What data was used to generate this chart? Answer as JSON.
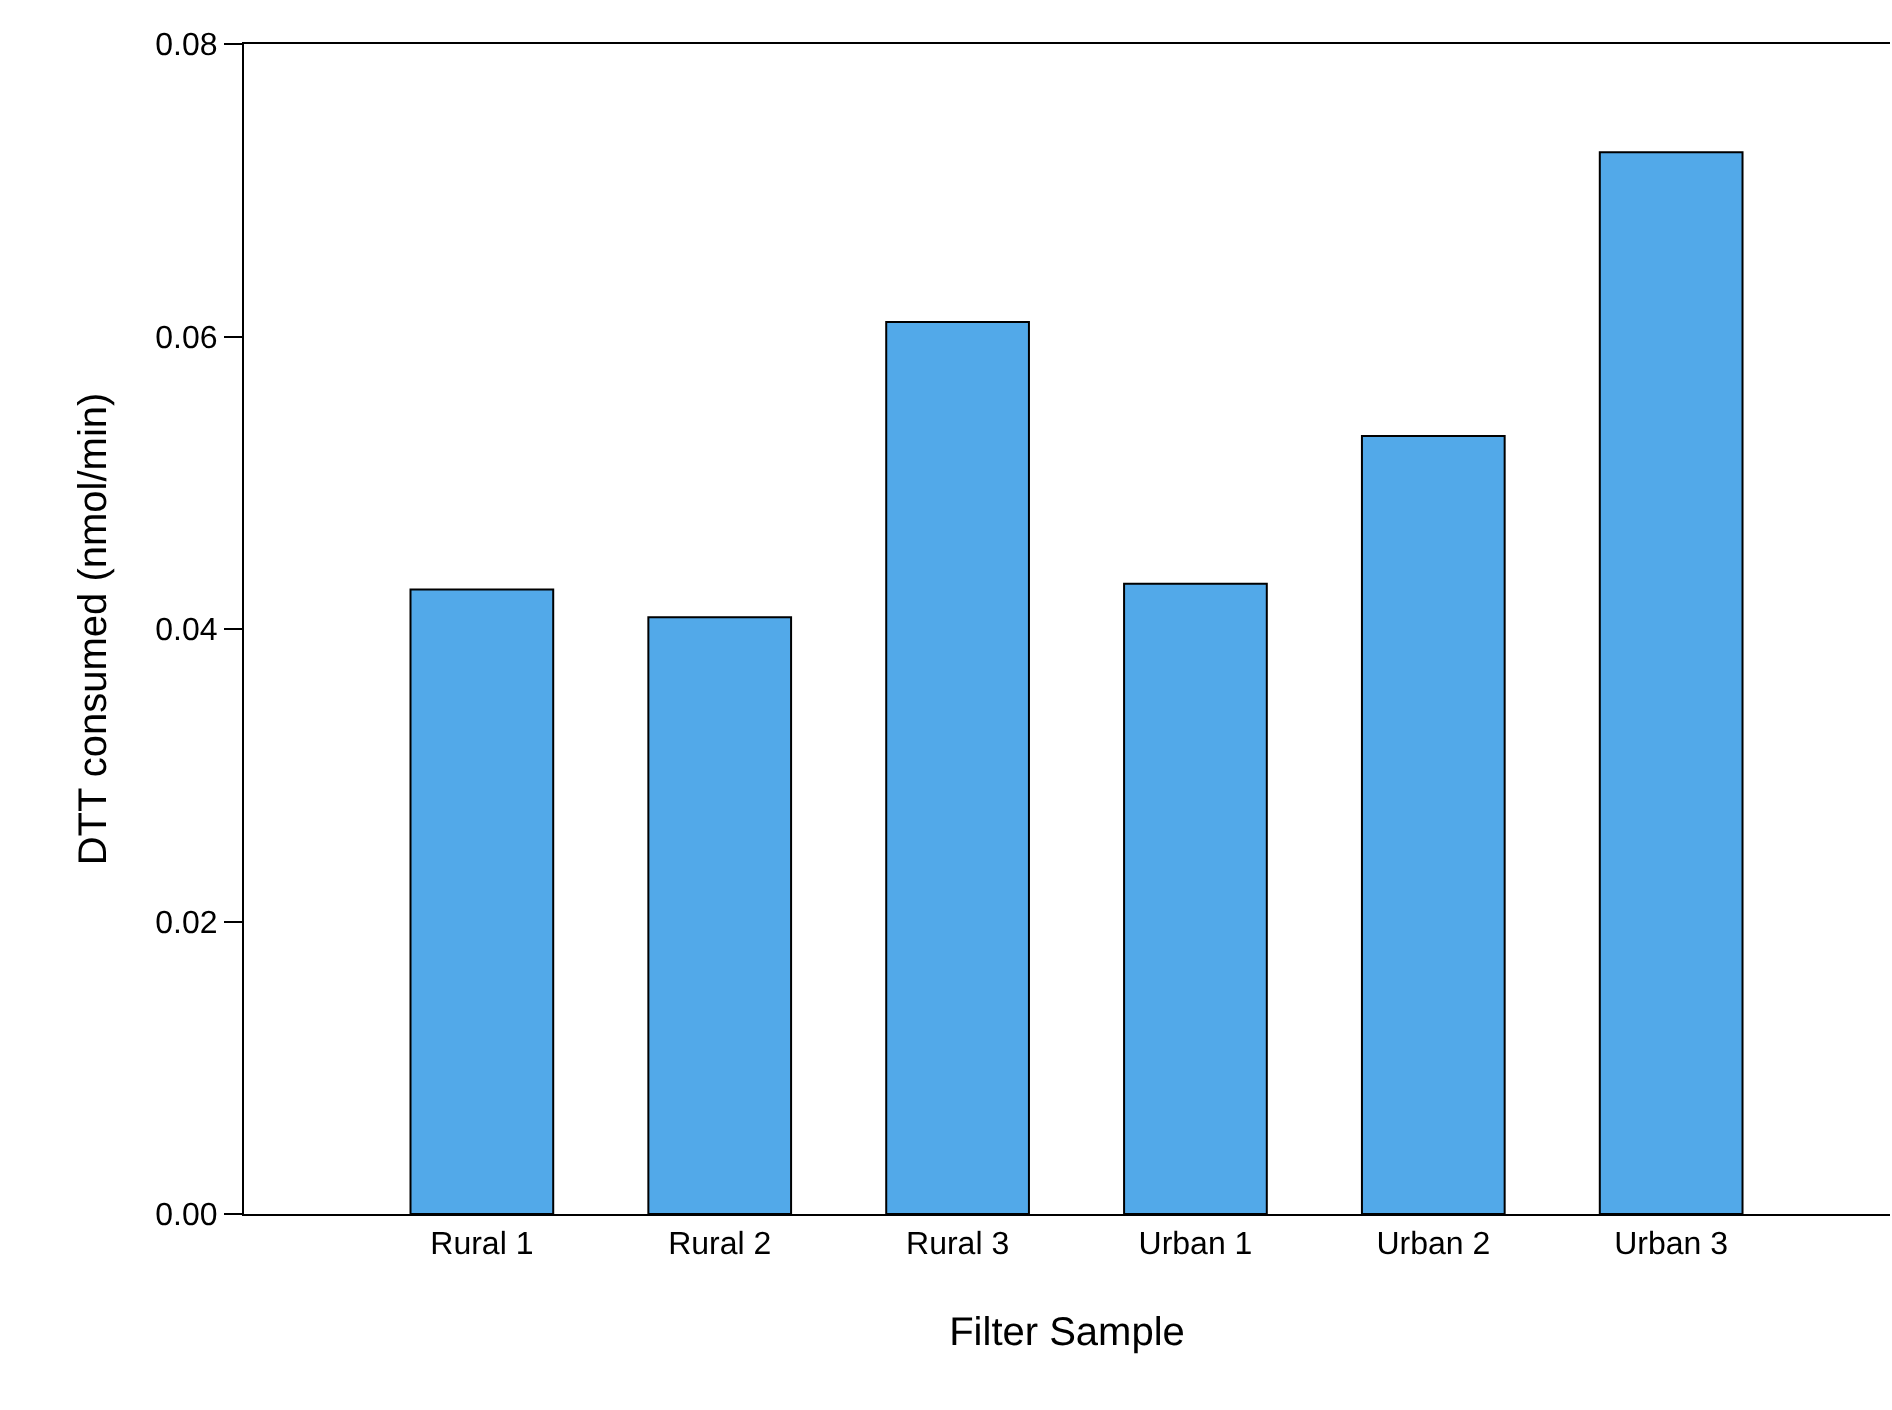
{
  "chart_data": {
    "type": "bar",
    "xlabel": "Filter Sample",
    "ylabel": "DTT consumed (nmol/min)",
    "categories": [
      "Rural 1",
      "Rural 2",
      "Rural 3",
      "Urban 1",
      "Urban 2",
      "Urban 3"
    ],
    "values": [
      0.0427,
      0.0408,
      0.061,
      0.0431,
      0.0532,
      0.0726
    ],
    "color": "#52a9e9",
    "ylim": [
      0,
      0.08
    ],
    "yticks": [
      {
        "value": 0,
        "label": "0.00"
      },
      {
        "value": 0.02,
        "label": "0.02"
      },
      {
        "value": 0.04,
        "label": "0.04"
      },
      {
        "value": 0.06,
        "label": "0.06"
      },
      {
        "value": 0.08,
        "label": "0.08"
      }
    ],
    "grid": false,
    "legend": false
  }
}
